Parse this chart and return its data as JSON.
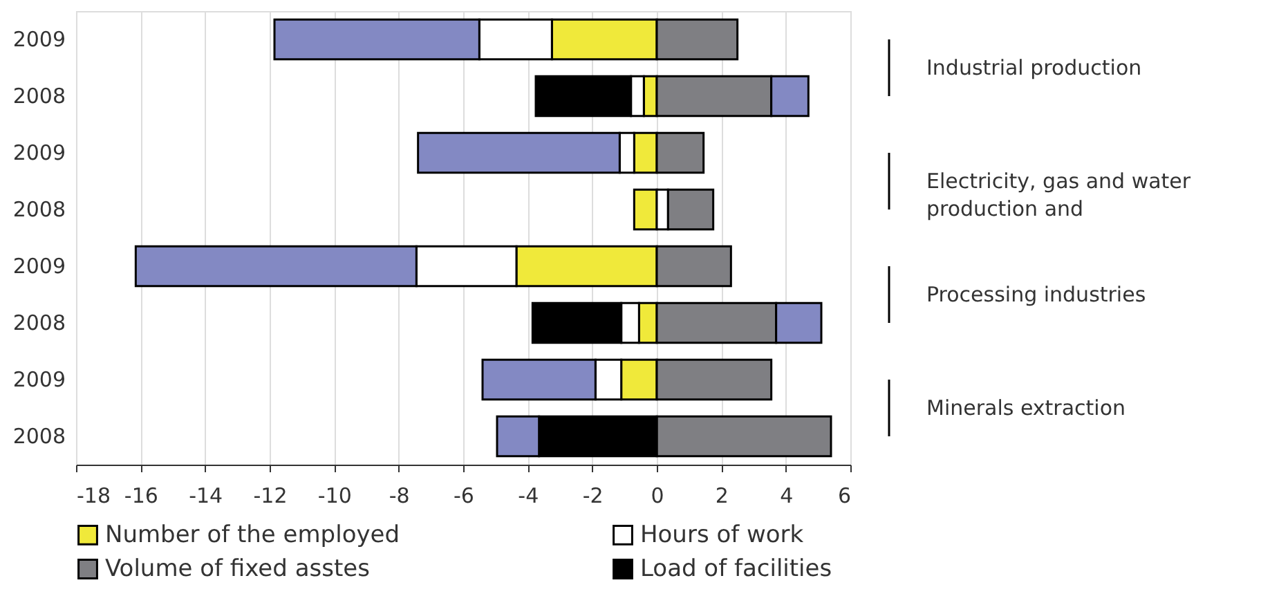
{
  "chart_data": {
    "type": "bar",
    "orientation": "horizontal",
    "stacked": true,
    "categories": [
      "2009",
      "2008",
      "2009",
      "2008",
      "2009",
      "2008",
      "2009",
      "2008"
    ],
    "series": [
      {
        "name": "Number of the employed",
        "color": "#f0e93a",
        "values": [
          -3.25,
          -0.4,
          -0.7,
          -0.7,
          -4.35,
          -0.55,
          -1.1,
          null
        ]
      },
      {
        "name": "Hours of work",
        "color": "#ffffff",
        "values": [
          -2.25,
          -0.4,
          -0.45,
          0.35,
          -3.1,
          -0.55,
          -0.8,
          null
        ]
      },
      {
        "name": "Volume of fixed asstes",
        "color": "#7f7f83",
        "values": [
          2.5,
          3.55,
          1.45,
          1.4,
          2.3,
          3.7,
          3.55,
          5.4
        ]
      },
      {
        "name": "Load of facilities",
        "color": "#000000",
        "values": [
          null,
          -2.95,
          null,
          null,
          null,
          -2.75,
          null,
          -3.65
        ]
      },
      {
        "color": "#8389c3",
        "values": [
          -6.35,
          1.15,
          -6.25,
          null,
          -8.7,
          1.4,
          -3.5,
          -1.3
        ]
      }
    ],
    "xlim": [
      -18,
      6
    ],
    "xticks": [
      -18,
      -16,
      -14,
      -12,
      -10,
      -8,
      -6,
      -4,
      -2,
      0,
      2,
      4,
      6
    ],
    "grid": "x",
    "legend": "bottom",
    "annotations": [
      "Industrial production",
      "Electricity, gas and water production and",
      "Processing industries",
      "Minerals extraction"
    ]
  }
}
